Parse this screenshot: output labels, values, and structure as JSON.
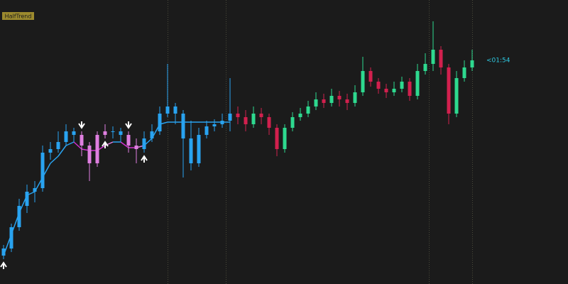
{
  "chart_data": {
    "type": "candlestick",
    "title": "HalfTrend",
    "annotation": "<01:54",
    "ylim": [
      0,
      400
    ],
    "open": [
      40,
      50,
      80,
      110,
      130,
      135,
      185,
      190,
      200,
      215,
      210,
      195,
      170,
      210,
      215,
      215,
      210,
      195,
      190,
      205,
      215,
      240,
      250,
      240,
      205,
      170,
      210,
      222,
      225,
      230,
      240,
      235,
      225,
      240,
      235,
      220,
      190,
      220,
      235,
      240,
      250,
      260,
      255,
      265,
      260,
      255,
      270,
      300,
      285,
      275,
      270,
      275,
      285,
      265,
      300,
      310,
      330,
      305,
      240,
      290,
      305
    ],
    "high": [
      55,
      85,
      120,
      140,
      145,
      195,
      200,
      215,
      225,
      220,
      215,
      200,
      215,
      225,
      222,
      220,
      215,
      205,
      215,
      225,
      250,
      310,
      255,
      245,
      230,
      220,
      230,
      232,
      240,
      290,
      250,
      245,
      250,
      248,
      240,
      225,
      225,
      242,
      248,
      258,
      270,
      268,
      275,
      272,
      268,
      280,
      320,
      305,
      290,
      282,
      285,
      292,
      290,
      310,
      325,
      370,
      335,
      310,
      300,
      315,
      330
    ],
    "low": [
      35,
      45,
      75,
      100,
      115,
      130,
      175,
      185,
      195,
      200,
      180,
      145,
      165,
      205,
      205,
      200,
      185,
      170,
      185,
      200,
      210,
      235,
      225,
      150,
      160,
      165,
      205,
      215,
      220,
      215,
      225,
      215,
      220,
      225,
      210,
      180,
      185,
      215,
      230,
      235,
      245,
      248,
      250,
      250,
      245,
      250,
      265,
      278,
      268,
      262,
      265,
      270,
      258,
      260,
      295,
      300,
      295,
      225,
      235,
      285,
      300
    ],
    "close": [
      50,
      80,
      110,
      130,
      135,
      185,
      190,
      200,
      215,
      210,
      195,
      170,
      210,
      215,
      215,
      210,
      195,
      190,
      205,
      215,
      240,
      250,
      240,
      205,
      170,
      210,
      222,
      225,
      230,
      240,
      235,
      225,
      240,
      235,
      220,
      190,
      220,
      235,
      240,
      250,
      260,
      255,
      265,
      260,
      255,
      270,
      300,
      285,
      275,
      270,
      275,
      285,
      265,
      300,
      310,
      330,
      305,
      240,
      290,
      305,
      315
    ],
    "colors": [
      "#29a3f0",
      "#29a3f0",
      "#29a3f0",
      "#29a3f0",
      "#29a3f0",
      "#29a3f0",
      "#29a3f0",
      "#29a3f0",
      "#29a3f0",
      "#29a3f0",
      "#df7fe0",
      "#df7fe0",
      "#df7fe0",
      "#df7fe0",
      "#29a3f0",
      "#29a3f0",
      "#df7fe0",
      "#df7fe0",
      "#29a3f0",
      "#29a3f0",
      "#29a3f0",
      "#29a3f0",
      "#29a3f0",
      "#29a3f0",
      "#29a3f0",
      "#29a3f0",
      "#29a3f0",
      "#29a3f0",
      "#29a3f0",
      "#29a3f0",
      "#d2204e",
      "#d2204e",
      "#2ed98f",
      "#d2204e",
      "#d2204e",
      "#d2204e",
      "#2ed98f",
      "#2ed98f",
      "#2ed98f",
      "#2ed98f",
      "#2ed98f",
      "#d2204e",
      "#2ed98f",
      "#d2204e",
      "#d2204e",
      "#2ed98f",
      "#2ed98f",
      "#d2204e",
      "#d2204e",
      "#d2204e",
      "#2ed98f",
      "#2ed98f",
      "#d2204e",
      "#2ed98f",
      "#2ed98f",
      "#2ed98f",
      "#d2204e",
      "#d2204e",
      "#2ed98f",
      "#2ed98f",
      "#2ed98f"
    ],
    "halftrend": [
      40,
      70,
      100,
      125,
      130,
      150,
      170,
      180,
      195,
      200,
      190,
      188,
      188,
      195,
      200,
      200,
      192,
      192,
      195,
      205,
      225,
      228,
      228,
      228,
      228,
      228,
      228,
      228,
      228,
      228,
      null,
      null,
      null,
      null,
      null,
      null,
      null,
      null,
      null,
      null,
      null,
      null,
      null,
      null,
      null,
      null,
      null,
      null,
      null,
      null,
      null,
      null,
      null,
      null,
      null,
      null,
      null,
      null,
      null,
      null,
      null
    ],
    "signals": [
      "up",
      null,
      null,
      null,
      null,
      null,
      null,
      null,
      null,
      null,
      "down",
      null,
      null,
      "up",
      null,
      null,
      "down",
      null,
      "up",
      null,
      null,
      null,
      null,
      null,
      null,
      null,
      null,
      null,
      null,
      null,
      null,
      null,
      null,
      null,
      null,
      null,
      null,
      null,
      null,
      null,
      null,
      null,
      null,
      null,
      null,
      null,
      null,
      null,
      null,
      null,
      null,
      null,
      null,
      null,
      null,
      null,
      null,
      null,
      null,
      null,
      null
    ]
  }
}
